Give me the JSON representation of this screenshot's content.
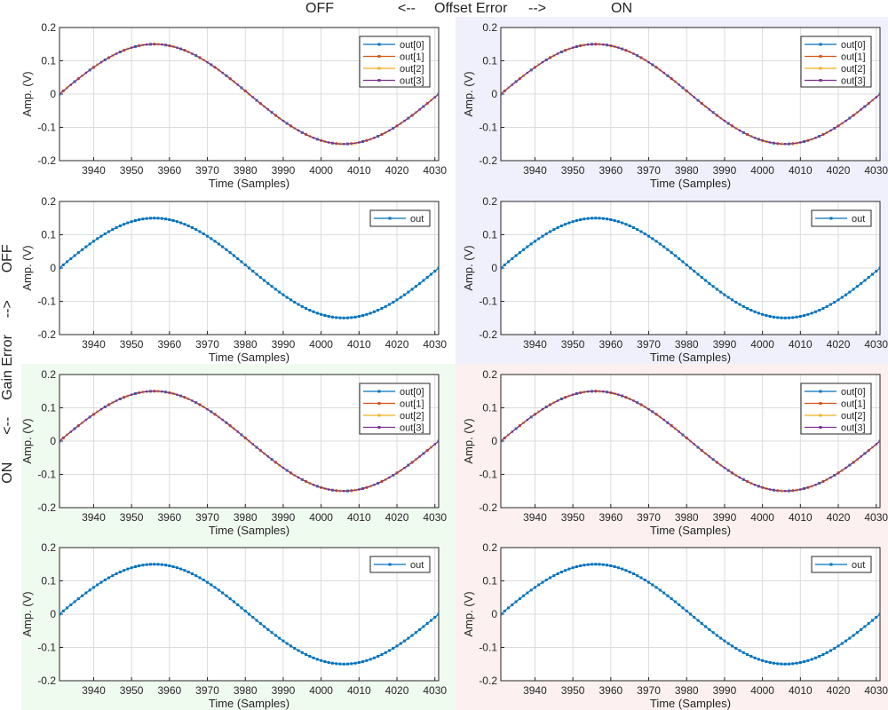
{
  "header": {
    "off": "OFF",
    "arrow_left": "<--",
    "title": "Offset Error",
    "arrow_right": "-->",
    "on": "ON"
  },
  "side": {
    "on": "ON",
    "arrow_left": "<--",
    "title": "Gain Error",
    "arrow_right": "-->",
    "off": "OFF"
  },
  "quadrant_colors": {
    "top_left": "#ffffff",
    "top_right": "#f0f0fc",
    "bottom_left": "#f0fbf0",
    "bottom_right": "#fcf0f0"
  },
  "series_colors": {
    "out[0]": "#0072bd",
    "out[1]": "#d95319",
    "out[2]": "#edb120",
    "out[3]": "#7e2f8e",
    "out": "#0072bd"
  },
  "chart_data": [
    {
      "id": "offset-off-gain-off-multi",
      "type": "line",
      "xlabel": "Time (Samples)",
      "ylabel": "Amp. (V)",
      "xlim": [
        3931,
        4031
      ],
      "ylim": [
        -0.2,
        0.2
      ],
      "xticks": [
        3940,
        3950,
        3960,
        3970,
        3980,
        3990,
        4000,
        4010,
        4020,
        4030
      ],
      "yticks": [
        0.2,
        0.1,
        0,
        -0.1,
        -0.2
      ],
      "ytick_labels": [
        "0.2",
        "0.1",
        "0",
        "-0.1",
        "-0.2"
      ],
      "legend": [
        "out[0]",
        "out[1]",
        "out[2]",
        "out[3]"
      ],
      "legend_position": "top-right",
      "grid": true,
      "series": [
        {
          "name": "out[0]",
          "amplitude": 0.15,
          "start": 3931,
          "period": 100
        },
        {
          "name": "out[1]",
          "amplitude": 0.15,
          "start": 3931,
          "period": 100
        },
        {
          "name": "out[2]",
          "amplitude": 0.15,
          "start": 3931,
          "period": 100
        },
        {
          "name": "out[3]",
          "amplitude": 0.15,
          "start": 3931,
          "period": 100
        }
      ]
    },
    {
      "id": "offset-on-gain-off-multi",
      "type": "line",
      "xlabel": "Time (Samples)",
      "ylabel": "Amp. (V)",
      "xlim": [
        3931,
        4031
      ],
      "ylim": [
        -0.2,
        0.2
      ],
      "xticks": [
        3940,
        3950,
        3960,
        3970,
        3980,
        3990,
        4000,
        4010,
        4020,
        4030
      ],
      "yticks": [
        0.2,
        0.1,
        0,
        -0.1,
        -0.2
      ],
      "ytick_labels": [
        "0.2",
        "0.1",
        "0",
        "-0.1",
        "-0.2"
      ],
      "legend": [
        "out[0]",
        "out[1]",
        "out[2]",
        "out[3]"
      ],
      "legend_position": "top-right",
      "grid": true,
      "series": [
        {
          "name": "out[0]",
          "amplitude": 0.15,
          "start": 3931,
          "period": 100
        },
        {
          "name": "out[1]",
          "amplitude": 0.15,
          "start": 3931,
          "period": 100
        },
        {
          "name": "out[2]",
          "amplitude": 0.15,
          "start": 3931,
          "period": 100
        },
        {
          "name": "out[3]",
          "amplitude": 0.15,
          "start": 3931,
          "period": 100
        }
      ]
    },
    {
      "id": "offset-off-gain-off-out",
      "type": "line",
      "xlabel": "Time (Samples)",
      "ylabel": "Amp. (V)",
      "xlim": [
        3931,
        4031
      ],
      "ylim": [
        -0.2,
        0.2
      ],
      "xticks": [
        3940,
        3950,
        3960,
        3970,
        3980,
        3990,
        4000,
        4010,
        4020,
        4030
      ],
      "yticks": [
        0.2,
        0.1,
        0,
        -0.1,
        -0.2
      ],
      "ytick_labels": [
        "0.2",
        "0.1",
        "0",
        "-0.1",
        "-0.2"
      ],
      "legend": [
        "out"
      ],
      "legend_position": "top-right",
      "grid": true,
      "series": [
        {
          "name": "out",
          "amplitude": 0.15,
          "start": 3931,
          "period": 100
        }
      ]
    },
    {
      "id": "offset-on-gain-off-out",
      "type": "line",
      "xlabel": "Time (Samples)",
      "ylabel": "Amp. (V)",
      "xlim": [
        3931,
        4031
      ],
      "ylim": [
        -0.2,
        0.2
      ],
      "xticks": [
        3940,
        3950,
        3960,
        3970,
        3980,
        3990,
        4000,
        4010,
        4020,
        4030
      ],
      "yticks": [
        0.2,
        0.1,
        0,
        -0.1,
        -0.2
      ],
      "ytick_labels": [
        "0.2",
        "0.1",
        "0",
        "-0.1",
        "-0.2"
      ],
      "legend": [
        "out"
      ],
      "legend_position": "top-right",
      "grid": true,
      "series": [
        {
          "name": "out",
          "amplitude": 0.15,
          "start": 3931,
          "period": 100
        }
      ]
    },
    {
      "id": "offset-off-gain-on-multi",
      "type": "line",
      "xlabel": "Time (Samples)",
      "ylabel": "Amp. (V)",
      "xlim": [
        3931,
        4031
      ],
      "ylim": [
        -0.2,
        0.2
      ],
      "xticks": [
        3940,
        3950,
        3960,
        3970,
        3980,
        3990,
        4000,
        4010,
        4020,
        4030
      ],
      "yticks": [
        0.2,
        0.1,
        0,
        -0.1,
        -0.2
      ],
      "ytick_labels": [
        "0.2",
        "0.1",
        "0",
        "-0.1",
        "-0.2"
      ],
      "legend": [
        "out[0]",
        "out[1]",
        "out[2]",
        "out[3]"
      ],
      "legend_position": "top-right",
      "grid": true,
      "series": [
        {
          "name": "out[0]",
          "amplitude": 0.15,
          "start": 3931,
          "period": 100
        },
        {
          "name": "out[1]",
          "amplitude": 0.15,
          "start": 3931,
          "period": 100
        },
        {
          "name": "out[2]",
          "amplitude": 0.15,
          "start": 3931,
          "period": 100
        },
        {
          "name": "out[3]",
          "amplitude": 0.15,
          "start": 3931,
          "period": 100
        }
      ]
    },
    {
      "id": "offset-on-gain-on-multi",
      "type": "line",
      "xlabel": "Time (Samples)",
      "ylabel": "Amp. (V)",
      "xlim": [
        3931,
        4031
      ],
      "ylim": [
        -0.2,
        0.2
      ],
      "xticks": [
        3940,
        3950,
        3960,
        3970,
        3980,
        3990,
        4000,
        4010,
        4020,
        4030
      ],
      "yticks": [
        0.2,
        0.1,
        0,
        -0.1,
        -0.2
      ],
      "ytick_labels": [
        "0.2",
        "0.1",
        "0",
        "-0.1",
        "-0.2"
      ],
      "legend": [
        "out[0]",
        "out[1]",
        "out[2]",
        "out[3]"
      ],
      "legend_position": "top-right",
      "grid": true,
      "series": [
        {
          "name": "out[0]",
          "amplitude": 0.15,
          "start": 3931,
          "period": 100
        },
        {
          "name": "out[1]",
          "amplitude": 0.15,
          "start": 3931,
          "period": 100
        },
        {
          "name": "out[2]",
          "amplitude": 0.15,
          "start": 3931,
          "period": 100
        },
        {
          "name": "out[3]",
          "amplitude": 0.15,
          "start": 3931,
          "period": 100
        }
      ]
    },
    {
      "id": "offset-off-gain-on-out",
      "type": "line",
      "xlabel": "Time (Samples)",
      "ylabel": "Amp. (V)",
      "xlim": [
        3931,
        4031
      ],
      "ylim": [
        -0.2,
        0.2
      ],
      "xticks": [
        3940,
        3950,
        3960,
        3970,
        3980,
        3990,
        4000,
        4010,
        4020,
        4030
      ],
      "yticks": [
        0.2,
        0.1,
        0,
        -0.1,
        -0.2
      ],
      "ytick_labels": [
        "0.2",
        "0.1",
        "0",
        "-0.1",
        "-0.2"
      ],
      "legend": [
        "out"
      ],
      "legend_position": "top-right",
      "grid": true,
      "series": [
        {
          "name": "out",
          "amplitude": 0.15,
          "start": 3931,
          "period": 100
        }
      ]
    },
    {
      "id": "offset-on-gain-on-out",
      "type": "line",
      "xlabel": "Time (Samples)",
      "ylabel": "Amp. (V)",
      "xlim": [
        3931,
        4031
      ],
      "ylim": [
        -0.2,
        0.2
      ],
      "xticks": [
        3940,
        3950,
        3960,
        3970,
        3980,
        3990,
        4000,
        4010,
        4020,
        4030
      ],
      "yticks": [
        0.2,
        0.1,
        0,
        -0.1,
        -0.2
      ],
      "ytick_labels": [
        "0.2",
        "0.1",
        "0",
        "-0.1",
        "-0.2"
      ],
      "legend": [
        "out"
      ],
      "legend_position": "top-right",
      "grid": true,
      "series": [
        {
          "name": "out",
          "amplitude": 0.15,
          "start": 3931,
          "period": 100
        }
      ]
    }
  ]
}
